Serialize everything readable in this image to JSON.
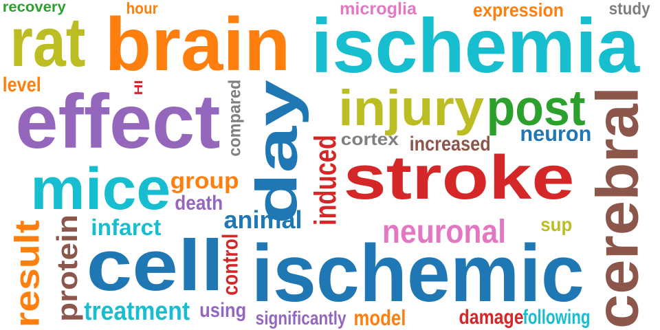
{
  "palette": {
    "blue": "#1f77b4",
    "orange": "#ff7f0e",
    "green": "#2ca02c",
    "red": "#d62728",
    "purple": "#9467bd",
    "brown": "#8c564b",
    "pink": "#e377c2",
    "gray": "#7f7f7f",
    "olive": "#bcbd22",
    "cyan": "#17becf"
  },
  "words": [
    {
      "text": "recovery",
      "color": "green",
      "rotated": false
    },
    {
      "text": "rat",
      "color": "olive",
      "rotated": false
    },
    {
      "text": "hour",
      "color": "orange",
      "rotated": false
    },
    {
      "text": "brain",
      "color": "orange",
      "rotated": false
    },
    {
      "text": "microglia",
      "color": "pink",
      "rotated": false
    },
    {
      "text": "expression",
      "color": "orange",
      "rotated": false
    },
    {
      "text": "study",
      "color": "gray",
      "rotated": false
    },
    {
      "text": "ischemia",
      "color": "cyan",
      "rotated": false
    },
    {
      "text": "level",
      "color": "orange",
      "rotated": false
    },
    {
      "text": "HI",
      "color": "red",
      "rotated": true
    },
    {
      "text": "effect",
      "color": "purple",
      "rotated": false
    },
    {
      "text": "compared",
      "color": "gray",
      "rotated": true
    },
    {
      "text": "day",
      "color": "blue",
      "rotated": true
    },
    {
      "text": "injury",
      "color": "olive",
      "rotated": false
    },
    {
      "text": "post",
      "color": "green",
      "rotated": false
    },
    {
      "text": "cerebral",
      "color": "brown",
      "rotated": true
    },
    {
      "text": "neuron",
      "color": "blue",
      "rotated": false
    },
    {
      "text": "cortex",
      "color": "gray",
      "rotated": false
    },
    {
      "text": "increased",
      "color": "brown",
      "rotated": false
    },
    {
      "text": "induced",
      "color": "red",
      "rotated": true
    },
    {
      "text": "stroke",
      "color": "red",
      "rotated": false
    },
    {
      "text": "mice",
      "color": "cyan",
      "rotated": false
    },
    {
      "text": "group",
      "color": "orange",
      "rotated": false
    },
    {
      "text": "death",
      "color": "purple",
      "rotated": false
    },
    {
      "text": "animal",
      "color": "blue",
      "rotated": false
    },
    {
      "text": "neuronal",
      "color": "pink",
      "rotated": false
    },
    {
      "text": "sup",
      "color": "olive",
      "rotated": false
    },
    {
      "text": "result",
      "color": "orange",
      "rotated": true
    },
    {
      "text": "protein",
      "color": "brown",
      "rotated": true
    },
    {
      "text": "infarct",
      "color": "cyan",
      "rotated": false
    },
    {
      "text": "cell",
      "color": "blue",
      "rotated": false
    },
    {
      "text": "control",
      "color": "red",
      "rotated": true
    },
    {
      "text": "ischemic",
      "color": "blue",
      "rotated": false
    },
    {
      "text": "treatment",
      "color": "cyan",
      "rotated": false
    },
    {
      "text": "using",
      "color": "purple",
      "rotated": false
    },
    {
      "text": "significantly",
      "color": "purple",
      "rotated": false
    },
    {
      "text": "model",
      "color": "orange",
      "rotated": false
    },
    {
      "text": "damage",
      "color": "red",
      "rotated": false
    },
    {
      "text": "following",
      "color": "cyan",
      "rotated": false
    }
  ]
}
